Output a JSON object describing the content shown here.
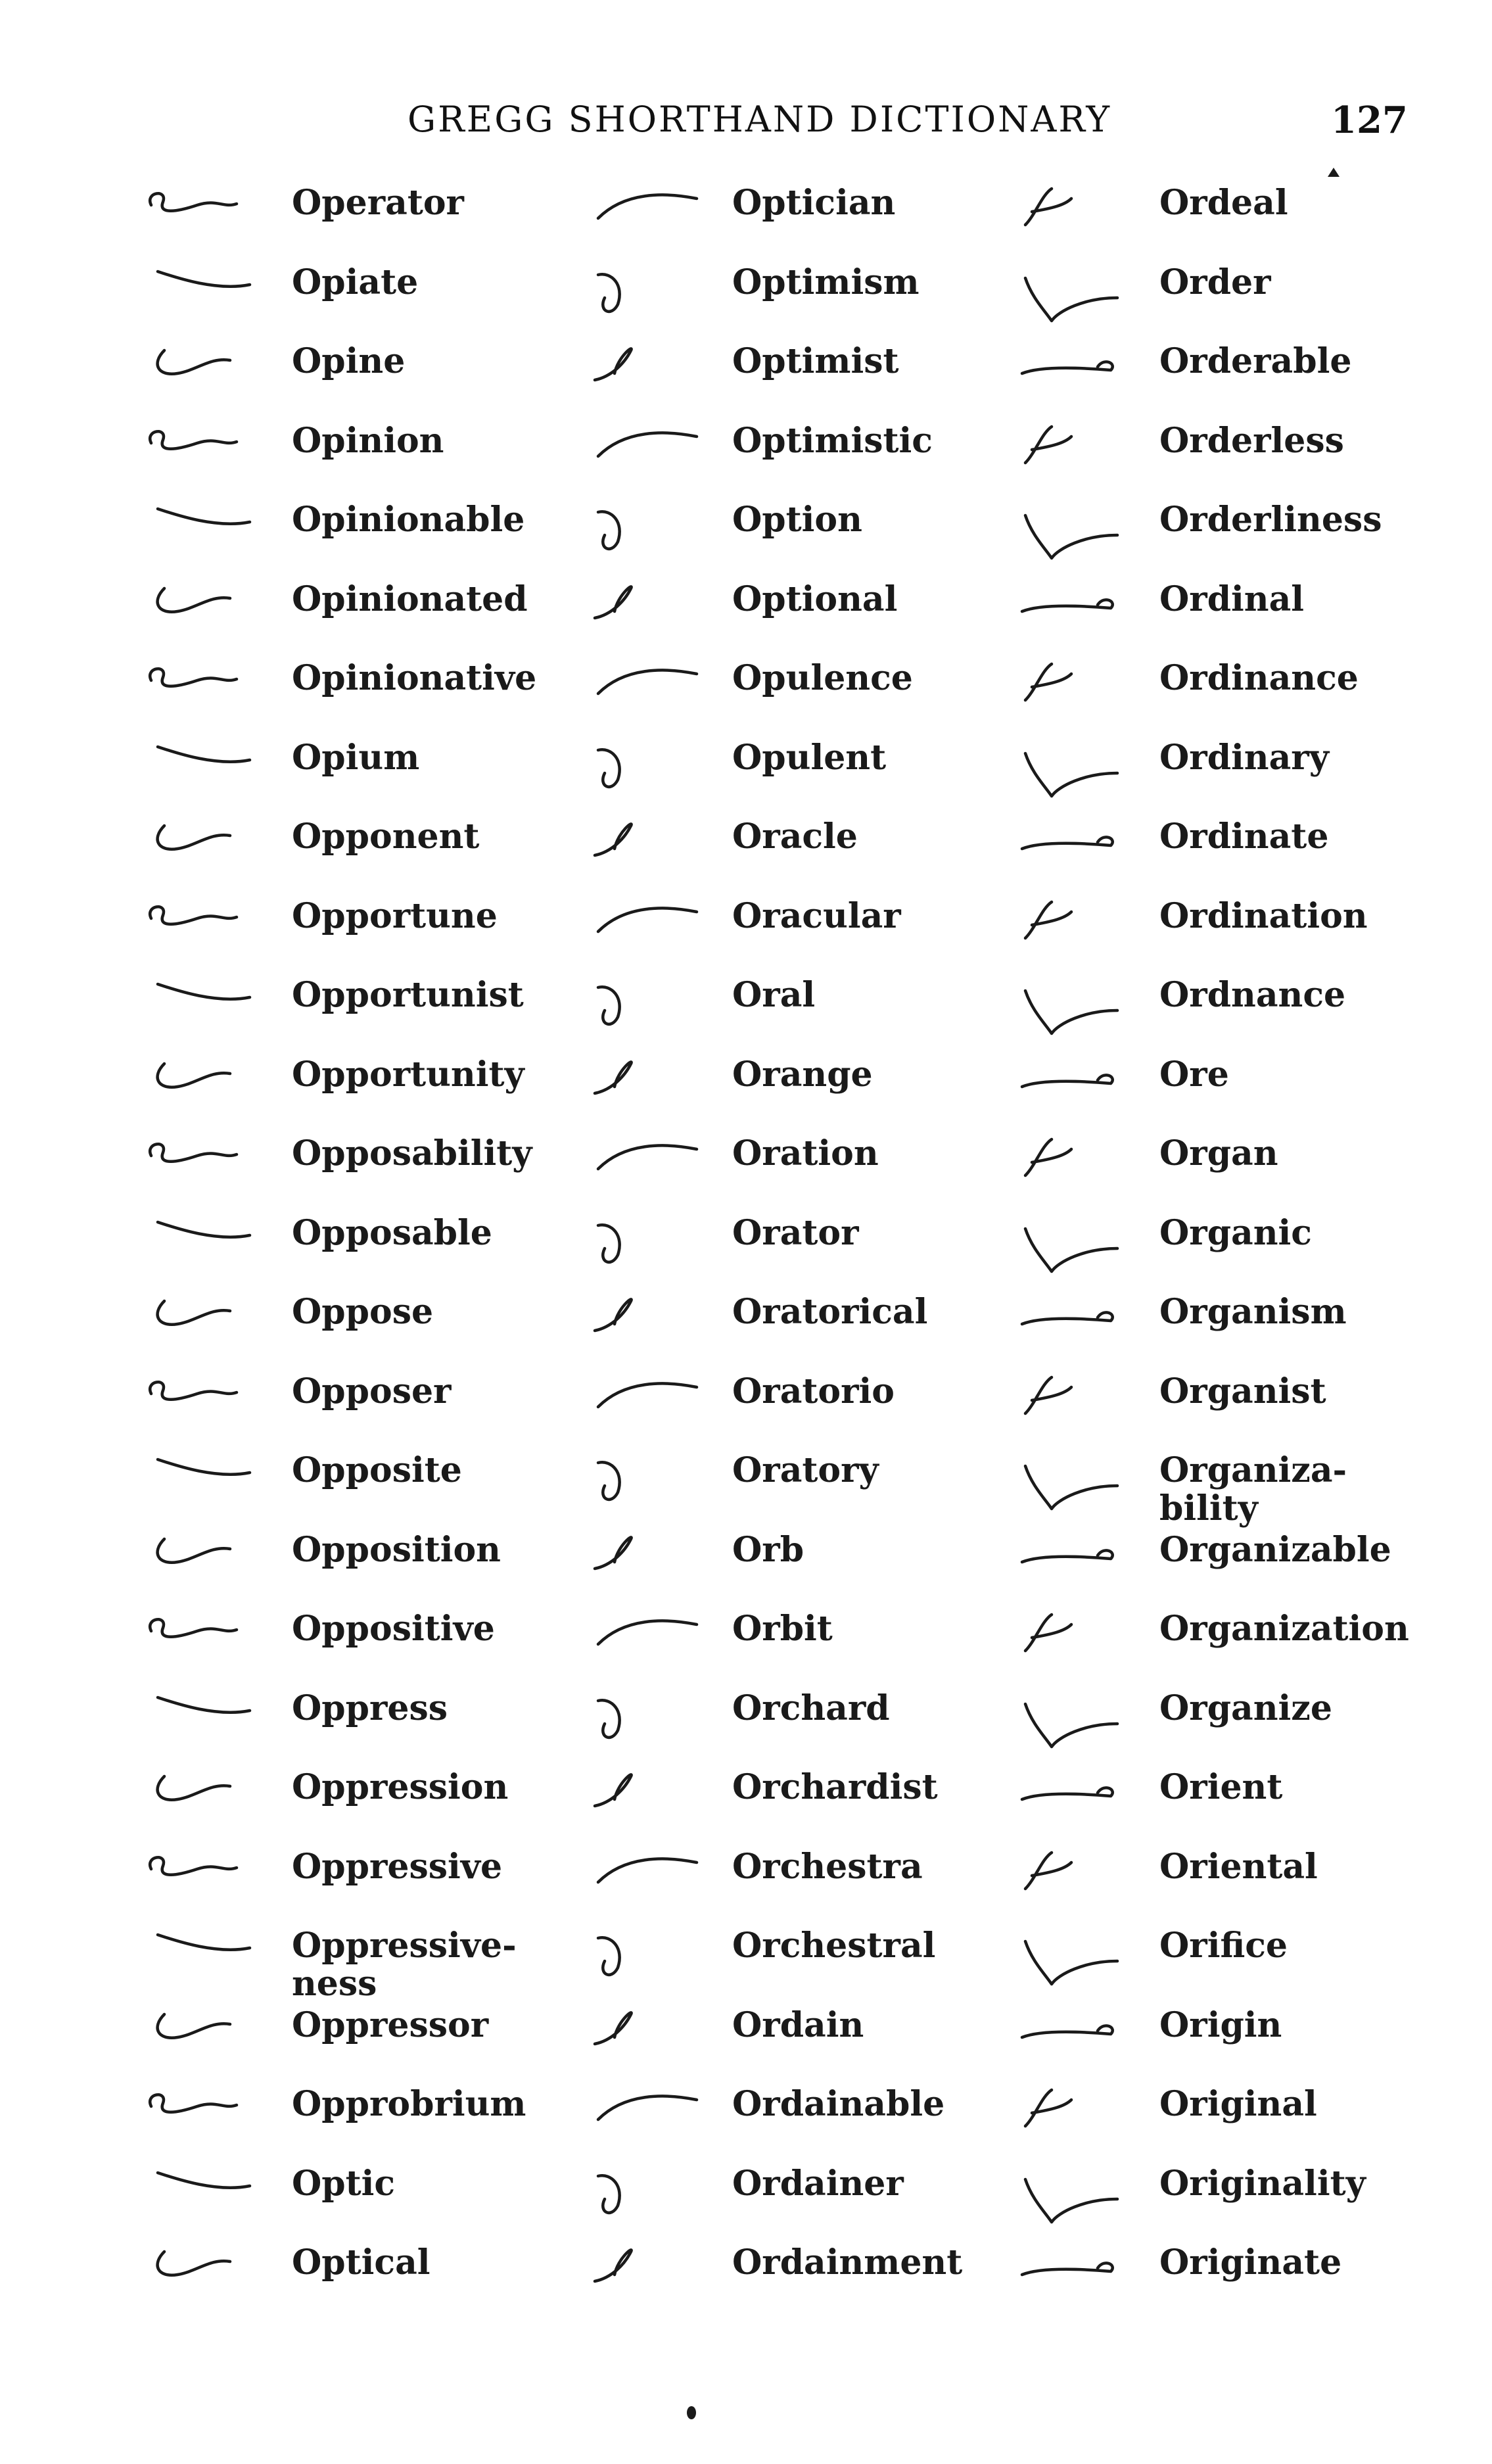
{
  "header": {
    "title": "GREGG SHORTHAND DICTIONARY",
    "page_number": "127"
  },
  "columns": [
    {
      "entries": [
        {
          "word": "Operator",
          "outline": "shorthand-outline"
        },
        {
          "word": "Opiate",
          "outline": "shorthand-outline"
        },
        {
          "word": "Opine",
          "outline": "shorthand-outline"
        },
        {
          "word": "Opinion",
          "outline": "shorthand-outline"
        },
        {
          "word": "Opinionable",
          "outline": "shorthand-outline"
        },
        {
          "word": "Opinionated",
          "outline": "shorthand-outline"
        },
        {
          "word": "Opinionative",
          "outline": "shorthand-outline"
        },
        {
          "word": "Opium",
          "outline": "shorthand-outline"
        },
        {
          "word": "Opponent",
          "outline": "shorthand-outline"
        },
        {
          "word": "Opportune",
          "outline": "shorthand-outline"
        },
        {
          "word": "Opportunist",
          "outline": "shorthand-outline"
        },
        {
          "word": "Opportunity",
          "outline": "shorthand-outline"
        },
        {
          "word": "Opposability",
          "outline": "shorthand-outline"
        },
        {
          "word": "Opposable",
          "outline": "shorthand-outline"
        },
        {
          "word": "Oppose",
          "outline": "shorthand-outline"
        },
        {
          "word": "Opposer",
          "outline": "shorthand-outline"
        },
        {
          "word": "Opposite",
          "outline": "shorthand-outline"
        },
        {
          "word": "Opposition",
          "outline": "shorthand-outline"
        },
        {
          "word": "Oppositive",
          "outline": "shorthand-outline"
        },
        {
          "word": "Oppress",
          "outline": "shorthand-outline"
        },
        {
          "word": "Oppression",
          "outline": "shorthand-outline"
        },
        {
          "word": "Oppressive",
          "outline": "shorthand-outline"
        },
        {
          "word": "Oppressive-\nness",
          "outline": "shorthand-outline"
        },
        {
          "word": "Oppressor",
          "outline": "shorthand-outline"
        },
        {
          "word": "Opprobrium",
          "outline": "shorthand-outline"
        },
        {
          "word": "Optic",
          "outline": "shorthand-outline"
        },
        {
          "word": "Optical",
          "outline": "shorthand-outline"
        }
      ]
    },
    {
      "entries": [
        {
          "word": "Optician",
          "outline": "shorthand-outline"
        },
        {
          "word": "Optimism",
          "outline": "shorthand-outline"
        },
        {
          "word": "Optimist",
          "outline": "shorthand-outline"
        },
        {
          "word": "Optimistic",
          "outline": "shorthand-outline"
        },
        {
          "word": "Option",
          "outline": "shorthand-outline"
        },
        {
          "word": "Optional",
          "outline": "shorthand-outline"
        },
        {
          "word": "Opulence",
          "outline": "shorthand-outline"
        },
        {
          "word": "Opulent",
          "outline": "shorthand-outline"
        },
        {
          "word": "Oracle",
          "outline": "shorthand-outline"
        },
        {
          "word": "Oracular",
          "outline": "shorthand-outline"
        },
        {
          "word": "Oral",
          "outline": "shorthand-outline"
        },
        {
          "word": "Orange",
          "outline": "shorthand-outline"
        },
        {
          "word": "Oration",
          "outline": "shorthand-outline"
        },
        {
          "word": "Orator",
          "outline": "shorthand-outline"
        },
        {
          "word": "Oratorical",
          "outline": "shorthand-outline"
        },
        {
          "word": "Oratorio",
          "outline": "shorthand-outline"
        },
        {
          "word": "Oratory",
          "outline": "shorthand-outline"
        },
        {
          "word": "Orb",
          "outline": "shorthand-outline"
        },
        {
          "word": "Orbit",
          "outline": "shorthand-outline"
        },
        {
          "word": "Orchard",
          "outline": "shorthand-outline"
        },
        {
          "word": "Orchardist",
          "outline": "shorthand-outline"
        },
        {
          "word": "Orchestra",
          "outline": "shorthand-outline"
        },
        {
          "word": "Orchestral",
          "outline": "shorthand-outline"
        },
        {
          "word": "Ordain",
          "outline": "shorthand-outline"
        },
        {
          "word": "Ordainable",
          "outline": "shorthand-outline"
        },
        {
          "word": "Ordainer",
          "outline": "shorthand-outline"
        },
        {
          "word": "Ordainment",
          "outline": "shorthand-outline"
        }
      ]
    },
    {
      "entries": [
        {
          "word": "Ordeal",
          "outline": "shorthand-outline"
        },
        {
          "word": "Order",
          "outline": "shorthand-outline"
        },
        {
          "word": "Orderable",
          "outline": "shorthand-outline"
        },
        {
          "word": "Orderless",
          "outline": "shorthand-outline"
        },
        {
          "word": "Orderliness",
          "outline": "shorthand-outline"
        },
        {
          "word": "Ordinal",
          "outline": "shorthand-outline"
        },
        {
          "word": "Ordinance",
          "outline": "shorthand-outline"
        },
        {
          "word": "Ordinary",
          "outline": "shorthand-outline"
        },
        {
          "word": "Ordinate",
          "outline": "shorthand-outline"
        },
        {
          "word": "Ordination",
          "outline": "shorthand-outline"
        },
        {
          "word": "Ordnance",
          "outline": "shorthand-outline"
        },
        {
          "word": "Ore",
          "outline": "shorthand-outline"
        },
        {
          "word": "Organ",
          "outline": "shorthand-outline"
        },
        {
          "word": "Organic",
          "outline": "shorthand-outline"
        },
        {
          "word": "Organism",
          "outline": "shorthand-outline"
        },
        {
          "word": "Organist",
          "outline": "shorthand-outline"
        },
        {
          "word": "Organiza-\nbility",
          "outline": "shorthand-outline"
        },
        {
          "word": "Organizable",
          "outline": "shorthand-outline"
        },
        {
          "word": "Organization",
          "outline": "shorthand-outline"
        },
        {
          "word": "Organize",
          "outline": "shorthand-outline"
        },
        {
          "word": "Orient",
          "outline": "shorthand-outline"
        },
        {
          "word": "Oriental",
          "outline": "shorthand-outline"
        },
        {
          "word": "Orifice",
          "outline": "shorthand-outline"
        },
        {
          "word": "Origin",
          "outline": "shorthand-outline"
        },
        {
          "word": "Original",
          "outline": "shorthand-outline"
        },
        {
          "word": "Originality",
          "outline": "shorthand-outline"
        },
        {
          "word": "Originate",
          "outline": "shorthand-outline"
        }
      ]
    }
  ]
}
